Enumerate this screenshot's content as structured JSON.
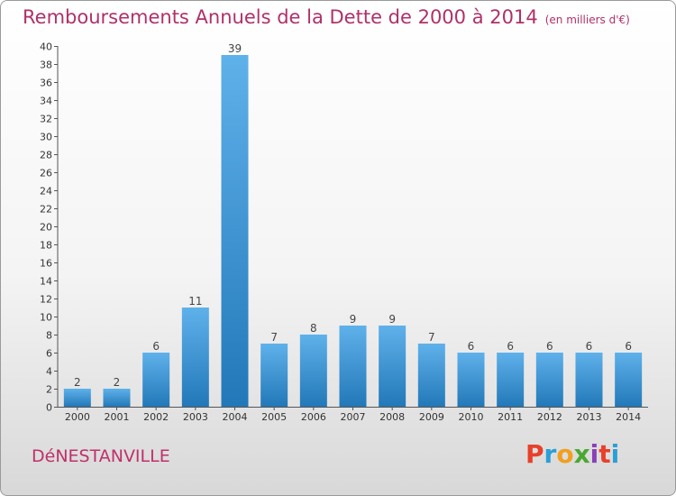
{
  "header": {
    "title": "Remboursements Annuels de la Dette de 2000 à 2014",
    "unit": "(en milliers d'€)"
  },
  "footer": {
    "commune": "DéNESTANVILLE",
    "logo": "Proxiti",
    "logo_colors": [
      "#e8402a",
      "#2a9fd6",
      "#f0a020",
      "#4aa832",
      "#8a3fb8",
      "#e8402a",
      "#2a9fd6"
    ]
  },
  "chart_data": {
    "type": "bar",
    "categories": [
      "2000",
      "2001",
      "2002",
      "2003",
      "2004",
      "2005",
      "2006",
      "2007",
      "2008",
      "2009",
      "2010",
      "2011",
      "2012",
      "2013",
      "2014"
    ],
    "values": [
      2,
      2,
      6,
      11,
      39,
      7,
      8,
      9,
      9,
      7,
      6,
      6,
      6,
      6,
      6
    ],
    "title": "Remboursements Annuels de la Dette de 2000 à 2014",
    "ylim": [
      0,
      40
    ],
    "yticks": [
      0,
      2,
      4,
      6,
      8,
      10,
      12,
      14,
      16,
      18,
      20,
      22,
      24,
      26,
      28,
      30,
      32,
      34,
      36,
      38,
      40
    ],
    "grid": false,
    "bar_color": "#3a8fd6"
  }
}
